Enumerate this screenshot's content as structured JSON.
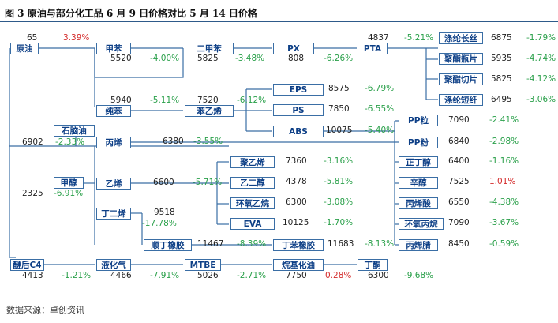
{
  "header": {
    "title": "图 3 原油与部分化工品 6 月 9 日价格对比 5 月 14 日价格"
  },
  "footer": {
    "source": "数据来源：卓创资讯"
  },
  "colors": {
    "box_border": "#3a6ea5",
    "box_text": "#0d3f86",
    "down": "#2aa04a",
    "up": "#d42a2a",
    "rule": "#2e5a8a"
  },
  "products": {
    "crude_oil": {
      "label": "原油",
      "price": "65",
      "change": "3.39%"
    },
    "naphtha": {
      "label": "石脑油",
      "price": "6902",
      "change": "-2.33%"
    },
    "methanol": {
      "label": "甲醇",
      "price": "2325",
      "change": "-6.91%"
    },
    "c4": {
      "label": "醚后C4",
      "price": "4413",
      "change": "-1.21%"
    },
    "benzene": {
      "label": "甲苯",
      "price": "5520",
      "change": "-4.00%"
    },
    "pure_benzene": {
      "label": "纯苯",
      "price": "5940",
      "change": "-5.11%"
    },
    "propylene": {
      "label": "丙烯",
      "price": "6380",
      "change": "-3.55%"
    },
    "ethylene": {
      "label": "乙烯",
      "price": "6600",
      "change": "-5.71%"
    },
    "butadiene": {
      "label": "丁二烯",
      "price": "9518",
      "change": "-17.78%"
    },
    "lpg": {
      "label": "液化气",
      "price": "4466",
      "change": "-7.91%"
    },
    "xylene": {
      "label": "二甲苯",
      "price": "5825",
      "change": "-3.48%"
    },
    "styrene": {
      "label": "苯乙烯",
      "price": "7520",
      "change": "-6.12%"
    },
    "br": {
      "label": "顺丁橡胶",
      "price": "11467",
      "change": "-8.39%"
    },
    "mtbe": {
      "label": "MTBE",
      "price": "5026",
      "change": "-2.71%"
    },
    "px": {
      "label": "PX",
      "price": "808",
      "change": "-6.26%"
    },
    "eps": {
      "label": "EPS",
      "price": "8575",
      "change": "-6.79%"
    },
    "ps": {
      "label": "PS",
      "price": "7850",
      "change": "-6.55%"
    },
    "abs": {
      "label": "ABS",
      "price": "10075",
      "change": "-5.40%"
    },
    "pe": {
      "label": "聚乙烯",
      "price": "7360",
      "change": "-3.16%"
    },
    "meg": {
      "label": "乙二醇",
      "price": "4378",
      "change": "-5.81%"
    },
    "eo": {
      "label": "环氧乙烷",
      "price": "6300",
      "change": "-3.08%"
    },
    "eva": {
      "label": "EVA",
      "price": "10125",
      "change": "-1.70%"
    },
    "sbr": {
      "label": "丁苯橡胶",
      "price": "11683",
      "change": "-8.13%"
    },
    "alkyl": {
      "label": "烷基化油",
      "price": "7750",
      "change": "0.28%"
    },
    "pta": {
      "label": "PTA",
      "price": "4837",
      "change": "-5.21%"
    },
    "butanone": {
      "label": "丁酮",
      "price": "6300",
      "change": "-9.68%"
    },
    "pp_pellet": {
      "label": "PP粒",
      "price": "7090",
      "change": "-2.41%"
    },
    "pp_powder": {
      "label": "PP粉",
      "price": "6840",
      "change": "-2.98%"
    },
    "n_butanol": {
      "label": "正丁醇",
      "price": "6400",
      "change": "-1.16%"
    },
    "octanol": {
      "label": "辛醇",
      "price": "7525",
      "change": "1.01%"
    },
    "acrylic": {
      "label": "丙烯酸",
      "price": "6550",
      "change": "-4.38%"
    },
    "po": {
      "label": "环氧丙烷",
      "price": "7090",
      "change": "-3.67%"
    },
    "an": {
      "label": "丙烯腈",
      "price": "8450",
      "change": "-0.59%"
    },
    "pfy": {
      "label": "涤纶长丝",
      "price": "6875",
      "change": "-1.79%"
    },
    "pet_bottle": {
      "label": "聚酯瓶片",
      "price": "5935",
      "change": "-4.74%"
    },
    "pet_chip": {
      "label": "聚酯切片",
      "price": "5825",
      "change": "-4.12%"
    },
    "psf": {
      "label": "涤纶短纤",
      "price": "6495",
      "change": "-3.06%"
    }
  }
}
